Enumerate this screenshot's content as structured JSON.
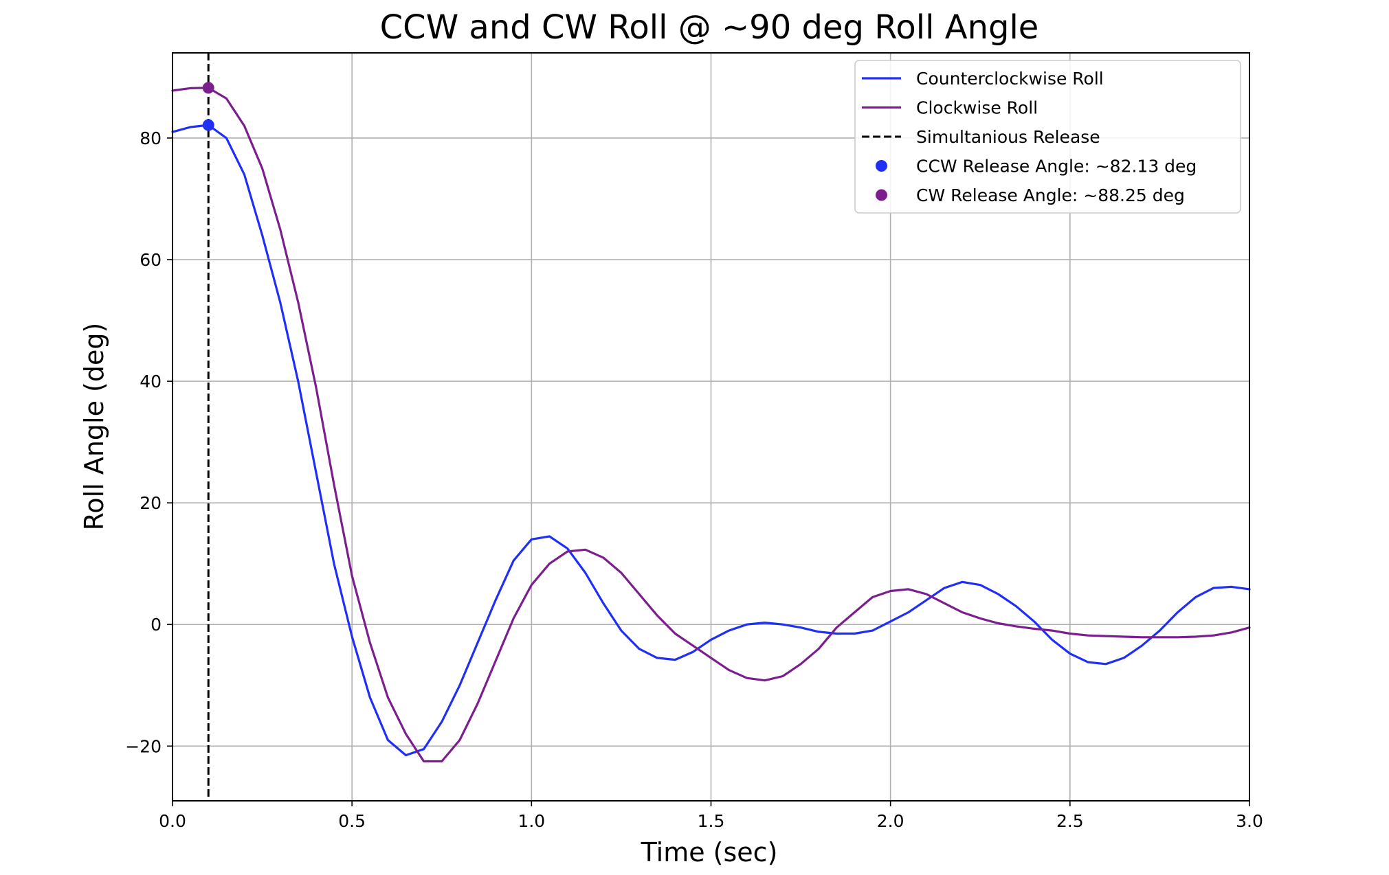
{
  "chart_data": {
    "type": "line",
    "title": "CCW and CW Roll @ ~90 deg Roll Angle",
    "xlabel": "Time (sec)",
    "ylabel": "Roll Angle (deg)",
    "xlim": [
      0.0,
      3.0
    ],
    "ylim": [
      -29,
      94
    ],
    "x_ticks": [
      0.0,
      0.5,
      1.0,
      1.5,
      2.0,
      2.5,
      3.0
    ],
    "x_tick_labels": [
      "0.0",
      "0.5",
      "1.0",
      "1.5",
      "2.0",
      "2.5",
      "3.0"
    ],
    "y_ticks": [
      -20,
      0,
      20,
      40,
      60,
      80
    ],
    "y_tick_labels": [
      "−20",
      "0",
      "20",
      "40",
      "60",
      "80"
    ],
    "grid": true,
    "legend_position": "top-right",
    "series": [
      {
        "name": "Counterclockwise Roll",
        "color": "#1f2ff5",
        "style": "solid",
        "points": [
          [
            0.0,
            81.0
          ],
          [
            0.05,
            81.8
          ],
          [
            0.1,
            82.13
          ],
          [
            0.15,
            80.0
          ],
          [
            0.2,
            74.0
          ],
          [
            0.25,
            64.0
          ],
          [
            0.3,
            53.0
          ],
          [
            0.35,
            40.0
          ],
          [
            0.4,
            25.0
          ],
          [
            0.45,
            10.0
          ],
          [
            0.5,
            -2.0
          ],
          [
            0.55,
            -12.0
          ],
          [
            0.6,
            -19.0
          ],
          [
            0.65,
            -21.5
          ],
          [
            0.7,
            -20.5
          ],
          [
            0.75,
            -16.0
          ],
          [
            0.8,
            -10.0
          ],
          [
            0.85,
            -3.0
          ],
          [
            0.9,
            4.0
          ],
          [
            0.95,
            10.5
          ],
          [
            1.0,
            14.0
          ],
          [
            1.05,
            14.5
          ],
          [
            1.1,
            12.5
          ],
          [
            1.15,
            8.5
          ],
          [
            1.2,
            3.5
          ],
          [
            1.25,
            -1.0
          ],
          [
            1.3,
            -4.0
          ],
          [
            1.35,
            -5.5
          ],
          [
            1.4,
            -5.8
          ],
          [
            1.45,
            -4.5
          ],
          [
            1.5,
            -2.5
          ],
          [
            1.55,
            -1.0
          ],
          [
            1.6,
            0.0
          ],
          [
            1.65,
            0.3
          ],
          [
            1.7,
            0.0
          ],
          [
            1.75,
            -0.5
          ],
          [
            1.8,
            -1.2
          ],
          [
            1.85,
            -1.5
          ],
          [
            1.9,
            -1.5
          ],
          [
            1.95,
            -1.0
          ],
          [
            2.0,
            0.5
          ],
          [
            2.05,
            2.0
          ],
          [
            2.1,
            4.0
          ],
          [
            2.15,
            6.0
          ],
          [
            2.2,
            7.0
          ],
          [
            2.25,
            6.5
          ],
          [
            2.3,
            5.0
          ],
          [
            2.35,
            3.0
          ],
          [
            2.4,
            0.5
          ],
          [
            2.45,
            -2.5
          ],
          [
            2.5,
            -4.8
          ],
          [
            2.55,
            -6.2
          ],
          [
            2.6,
            -6.5
          ],
          [
            2.65,
            -5.5
          ],
          [
            2.7,
            -3.5
          ],
          [
            2.75,
            -1.0
          ],
          [
            2.8,
            2.0
          ],
          [
            2.85,
            4.5
          ],
          [
            2.9,
            6.0
          ],
          [
            2.95,
            6.2
          ],
          [
            3.0,
            5.8
          ]
        ]
      },
      {
        "name": "Clockwise Roll",
        "color": "#7b1f8e",
        "style": "solid",
        "points": [
          [
            0.0,
            87.8
          ],
          [
            0.05,
            88.2
          ],
          [
            0.1,
            88.25
          ],
          [
            0.15,
            86.5
          ],
          [
            0.2,
            82.0
          ],
          [
            0.25,
            75.0
          ],
          [
            0.3,
            65.0
          ],
          [
            0.35,
            53.0
          ],
          [
            0.4,
            39.0
          ],
          [
            0.45,
            23.0
          ],
          [
            0.5,
            8.0
          ],
          [
            0.55,
            -3.0
          ],
          [
            0.6,
            -12.0
          ],
          [
            0.65,
            -18.0
          ],
          [
            0.7,
            -22.5
          ],
          [
            0.75,
            -22.5
          ],
          [
            0.8,
            -19.0
          ],
          [
            0.85,
            -13.0
          ],
          [
            0.9,
            -6.0
          ],
          [
            0.95,
            1.0
          ],
          [
            1.0,
            6.5
          ],
          [
            1.05,
            10.0
          ],
          [
            1.1,
            12.0
          ],
          [
            1.15,
            12.3
          ],
          [
            1.2,
            11.0
          ],
          [
            1.25,
            8.5
          ],
          [
            1.3,
            5.0
          ],
          [
            1.35,
            1.5
          ],
          [
            1.4,
            -1.5
          ],
          [
            1.45,
            -3.5
          ],
          [
            1.5,
            -5.5
          ],
          [
            1.55,
            -7.5
          ],
          [
            1.6,
            -8.8
          ],
          [
            1.65,
            -9.2
          ],
          [
            1.7,
            -8.5
          ],
          [
            1.75,
            -6.5
          ],
          [
            1.8,
            -4.0
          ],
          [
            1.85,
            -0.5
          ],
          [
            1.9,
            2.0
          ],
          [
            1.95,
            4.5
          ],
          [
            2.0,
            5.5
          ],
          [
            2.05,
            5.8
          ],
          [
            2.1,
            5.0
          ],
          [
            2.15,
            3.5
          ],
          [
            2.2,
            2.0
          ],
          [
            2.25,
            1.0
          ],
          [
            2.3,
            0.2
          ],
          [
            2.35,
            -0.3
          ],
          [
            2.4,
            -0.7
          ],
          [
            2.45,
            -1.0
          ],
          [
            2.5,
            -1.5
          ],
          [
            2.55,
            -1.8
          ],
          [
            2.6,
            -1.9
          ],
          [
            2.65,
            -2.0
          ],
          [
            2.7,
            -2.1
          ],
          [
            2.75,
            -2.1
          ],
          [
            2.8,
            -2.1
          ],
          [
            2.85,
            -2.0
          ],
          [
            2.9,
            -1.8
          ],
          [
            2.95,
            -1.3
          ],
          [
            3.0,
            -0.5
          ]
        ]
      }
    ],
    "vertical_line": {
      "name": "Simultanious Release",
      "x": 0.1,
      "color": "#000000",
      "style": "dashed"
    },
    "markers": [
      {
        "name": "CCW Release Angle: ~82.13 deg",
        "x": 0.1,
        "y": 82.13,
        "color": "#1f2ff5"
      },
      {
        "name": "CW Release Angle: ~88.25 deg",
        "x": 0.1,
        "y": 88.25,
        "color": "#7b1f8e"
      }
    ]
  }
}
